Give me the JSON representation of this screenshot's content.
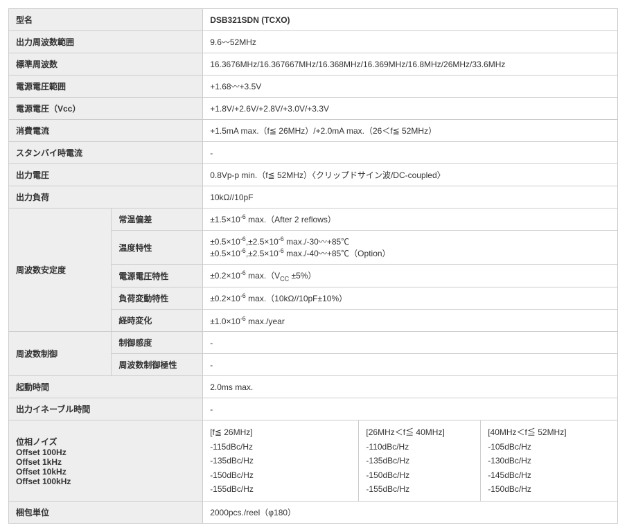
{
  "colwidths": [
    "135",
    "120",
    "205",
    "160",
    "180"
  ],
  "rows": [
    {
      "label": "型名",
      "value": "DSB321SDN (TCXO)",
      "valueBold": true
    },
    {
      "label": "出力周波数範囲",
      "value": "9.6〰52MHz"
    },
    {
      "label": "標準周波数",
      "value": "16.3676MHz/16.367667MHz/16.368MHz/16.369MHz/16.8MHz/26MHz/33.6MHz"
    },
    {
      "label": "電源電圧範囲",
      "value": "+1.68〰+3.5V"
    },
    {
      "label": "電源電圧（Vcc）",
      "value": "+1.8V/+2.6V/+2.8V/+3.0V/+3.3V"
    },
    {
      "label": "消費電流",
      "value": "+1.5mA max.（f≦ 26MHz）/+2.0mA max.（26＜f≦ 52MHz）"
    },
    {
      "label": "スタンバイ時電流",
      "value": "-"
    },
    {
      "label": "出力電圧",
      "value": "0.8Vp-p min.（f≦ 52MHz）〈クリップドサイン波/DC-coupled〉"
    },
    {
      "label": "出力負荷",
      "value": "10kΩ//10pF"
    }
  ],
  "freqStability": {
    "groupLabel": "周波数安定度",
    "items": [
      {
        "label": "常温偏差",
        "html": "±1.5×10<sup>-6</sup> max.（After 2 reflows）"
      },
      {
        "label": "温度特性",
        "html": "±0.5×10<sup>-6</sup>,±2.5×10<sup>-6</sup> max./-30〰+85℃<br>±0.5×10<sup>-6</sup>,±2.5×10<sup>-6</sup> max./-40〰+85℃（Option）"
      },
      {
        "label": "電源電圧特性",
        "html": "±0.2×10<sup>-6</sup> max.（V<sub>CC</sub> ±5%）"
      },
      {
        "label": "負荷変動特性",
        "html": "±0.2×10<sup>-6</sup> max.（10kΩ//10pF±10%）"
      },
      {
        "label": "経時変化",
        "html": "±1.0×10<sup>-6</sup> max./year"
      }
    ]
  },
  "freqControl": {
    "groupLabel": "周波数制御",
    "items": [
      {
        "label": "制御感度",
        "value": "-"
      },
      {
        "label": "周波数制御極性",
        "value": "-"
      }
    ]
  },
  "startup": {
    "label": "起動時間",
    "value": "2.0ms max."
  },
  "enable": {
    "label": "出力イネーブル時間",
    "value": "-"
  },
  "phaseNoise": {
    "header": "位相ノイズ",
    "offsets": [
      "Offset 100Hz",
      "Offset 1kHz",
      "Offset 10kHz",
      "Offset 100kHz"
    ],
    "cols": [
      {
        "hdr": "[f≦ 26MHz]",
        "vals": [
          "-115dBc/Hz",
          "-135dBc/Hz",
          "-150dBc/Hz",
          "-155dBc/Hz"
        ]
      },
      {
        "hdr": "[26MHz＜f≦ 40MHz]",
        "vals": [
          "-110dBc/Hz",
          "-135dBc/Hz",
          "-150dBc/Hz",
          "-155dBc/Hz"
        ]
      },
      {
        "hdr": "[40MHz＜f≦ 52MHz]",
        "vals": [
          "-105dBc/Hz",
          "-130dBc/Hz",
          "-145dBc/Hz",
          "-150dBc/Hz"
        ]
      }
    ]
  },
  "packaging": {
    "label": "梱包単位",
    "value": "2000pcs./reel（φ180）"
  }
}
